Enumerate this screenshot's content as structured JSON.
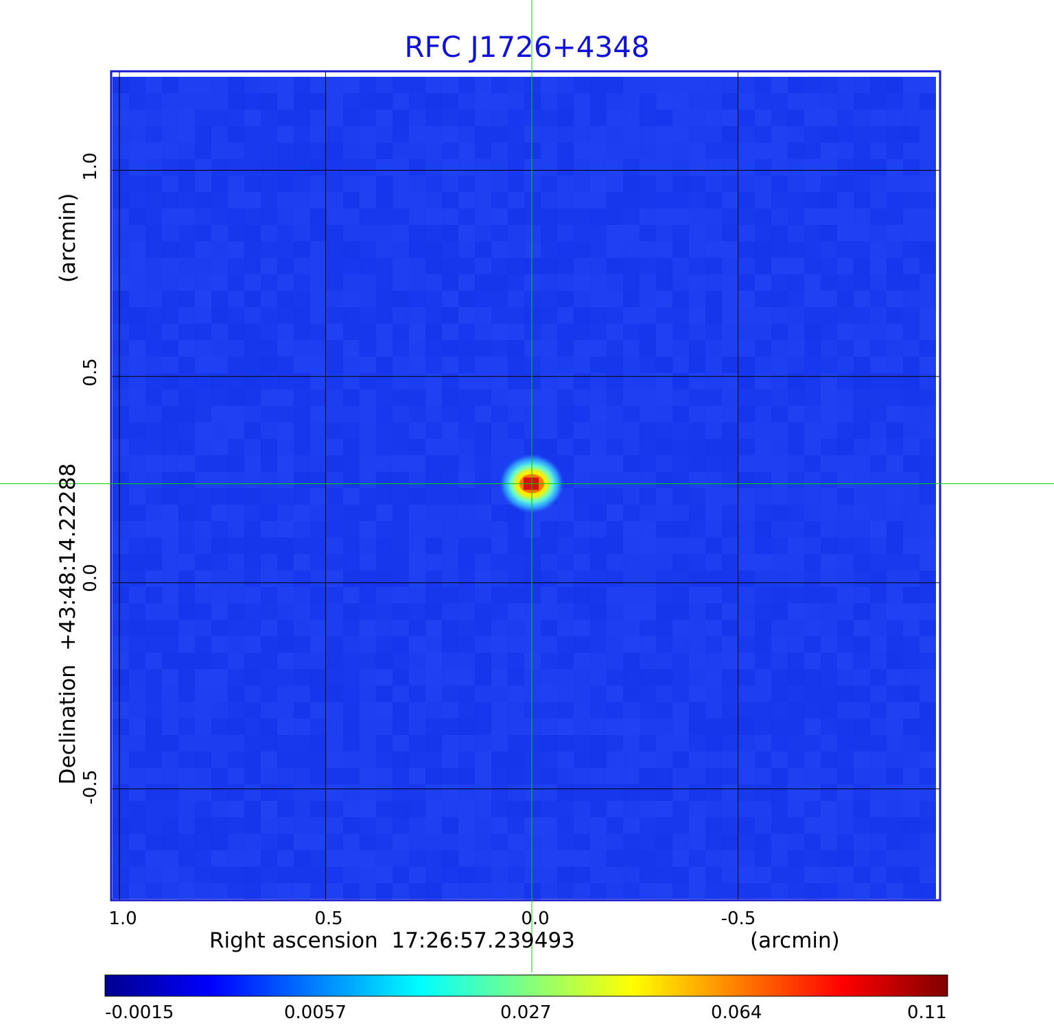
{
  "chart_data": {
    "type": "heatmap",
    "title": "RFC J1726+4348",
    "xlabel": "Right ascension  17:26:57.239493",
    "xunit": "(arcmin)",
    "ylabel": "Declination  +43:48:14.22288",
    "yunit": "(arcmin)",
    "x_ticks": [
      "1.0",
      "0.5",
      "0.0",
      "-0.5"
    ],
    "x_tick_values": [
      1.0,
      0.5,
      0.0,
      -0.5
    ],
    "y_ticks": [
      "1.0",
      "0.5",
      "0.0",
      "-0.5"
    ],
    "y_tick_values": [
      1.0,
      0.5,
      0.0,
      -0.5
    ],
    "xlim": [
      1.02,
      -0.99
    ],
    "ylim": [
      -0.77,
      1.24
    ],
    "x_reversed": true,
    "grid": true,
    "crosshair": {
      "x": 0.0,
      "y": 0.24,
      "color": "#00d000"
    },
    "peak": {
      "x": 0.0,
      "y": 0.24,
      "value": 0.11
    },
    "background_value": 0.0,
    "colorbar": {
      "ticks": [
        "-0.0015",
        "0.0057",
        "0.027",
        "0.064",
        "0.11"
      ],
      "tick_values": [
        -0.0015,
        0.0057,
        0.027,
        0.064,
        0.11
      ],
      "colormap": "jet"
    },
    "colors": {
      "background_field": "#1a3cf0",
      "frame": "#1a1ad0",
      "title": "#1010d8",
      "grid": "#000000"
    }
  }
}
